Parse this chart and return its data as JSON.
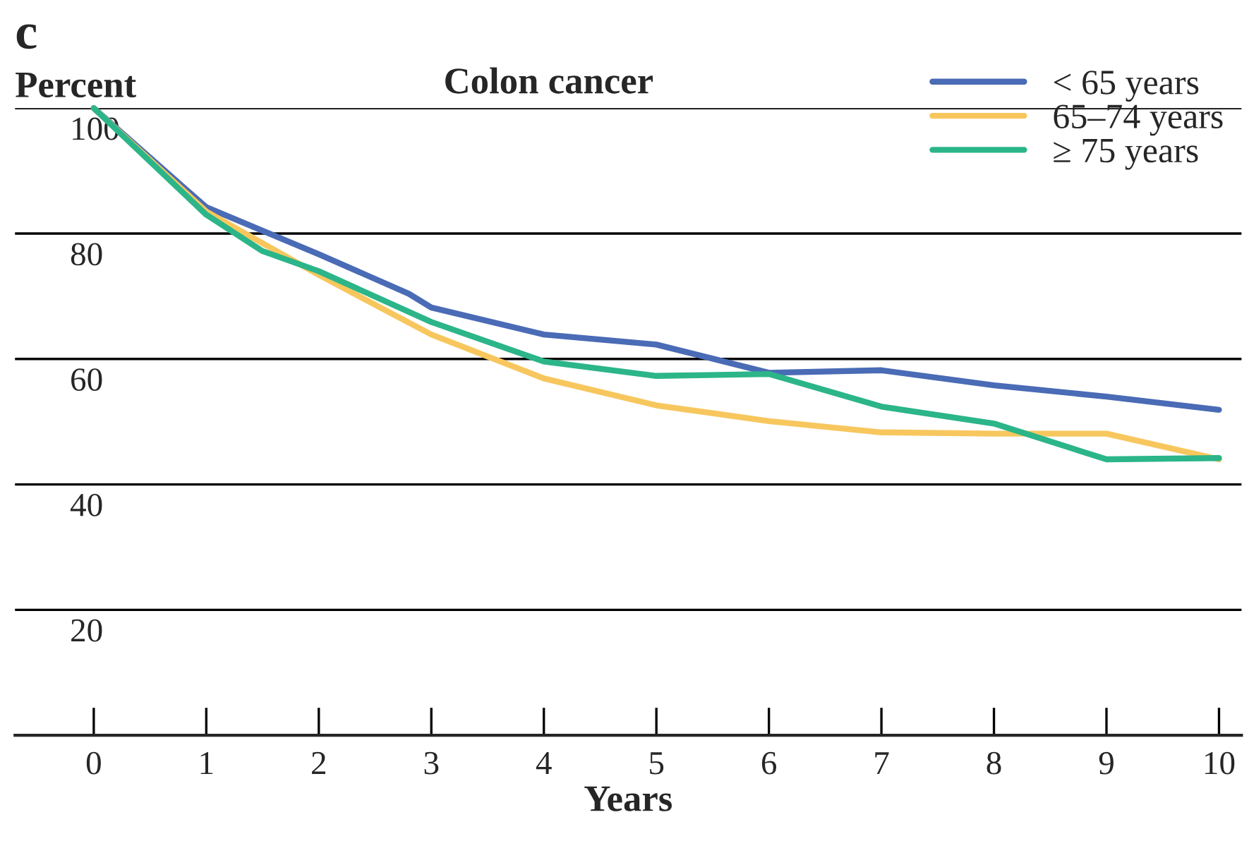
{
  "chart_data": {
    "type": "line",
    "title": "Colon cancer",
    "ylabel": "Percent",
    "xlabel": "Years",
    "annotations": [
      "c"
    ],
    "xlim": [
      -0.7,
      10.2
    ],
    "xticks": [
      0,
      1,
      2,
      3,
      4,
      5,
      6,
      7,
      8,
      9,
      10
    ],
    "ylim": [
      0,
      100
    ],
    "yticks": [
      {
        "value": 0,
        "label": null
      },
      20,
      40,
      60,
      80,
      100
    ],
    "grid": "y",
    "legend": "top right",
    "marker": "none",
    "line_style": "solid",
    "series": [
      {
        "name": "< 65 years",
        "color": "#4a6bb5",
        "x": [
          0,
          1,
          2,
          2.8,
          3,
          4,
          5,
          6,
          7,
          8,
          9,
          10
        ],
        "values": [
          100,
          84.2,
          76.7,
          70.4,
          68.2,
          63.9,
          62.3,
          57.8,
          58.2,
          55.8,
          54,
          51.9
        ]
      },
      {
        "name": "65–74 years",
        "color": "#f7c75e",
        "x": [
          0,
          1,
          2,
          3,
          4,
          5,
          6,
          7,
          8,
          9,
          10
        ],
        "values": [
          100,
          83.5,
          73.4,
          63.9,
          56.9,
          52.6,
          50.1,
          48.3,
          48.1,
          48.1,
          44
        ]
      },
      {
        "name": "≥ 75 years",
        "color": "#2bb589",
        "x": [
          0,
          1,
          1.5,
          2,
          3,
          4,
          5,
          6,
          7,
          8,
          9,
          10
        ],
        "values": [
          100,
          83,
          77.2,
          74,
          65.9,
          59.6,
          57.3,
          57.6,
          52.4,
          49.7,
          44,
          44.2
        ]
      }
    ]
  }
}
